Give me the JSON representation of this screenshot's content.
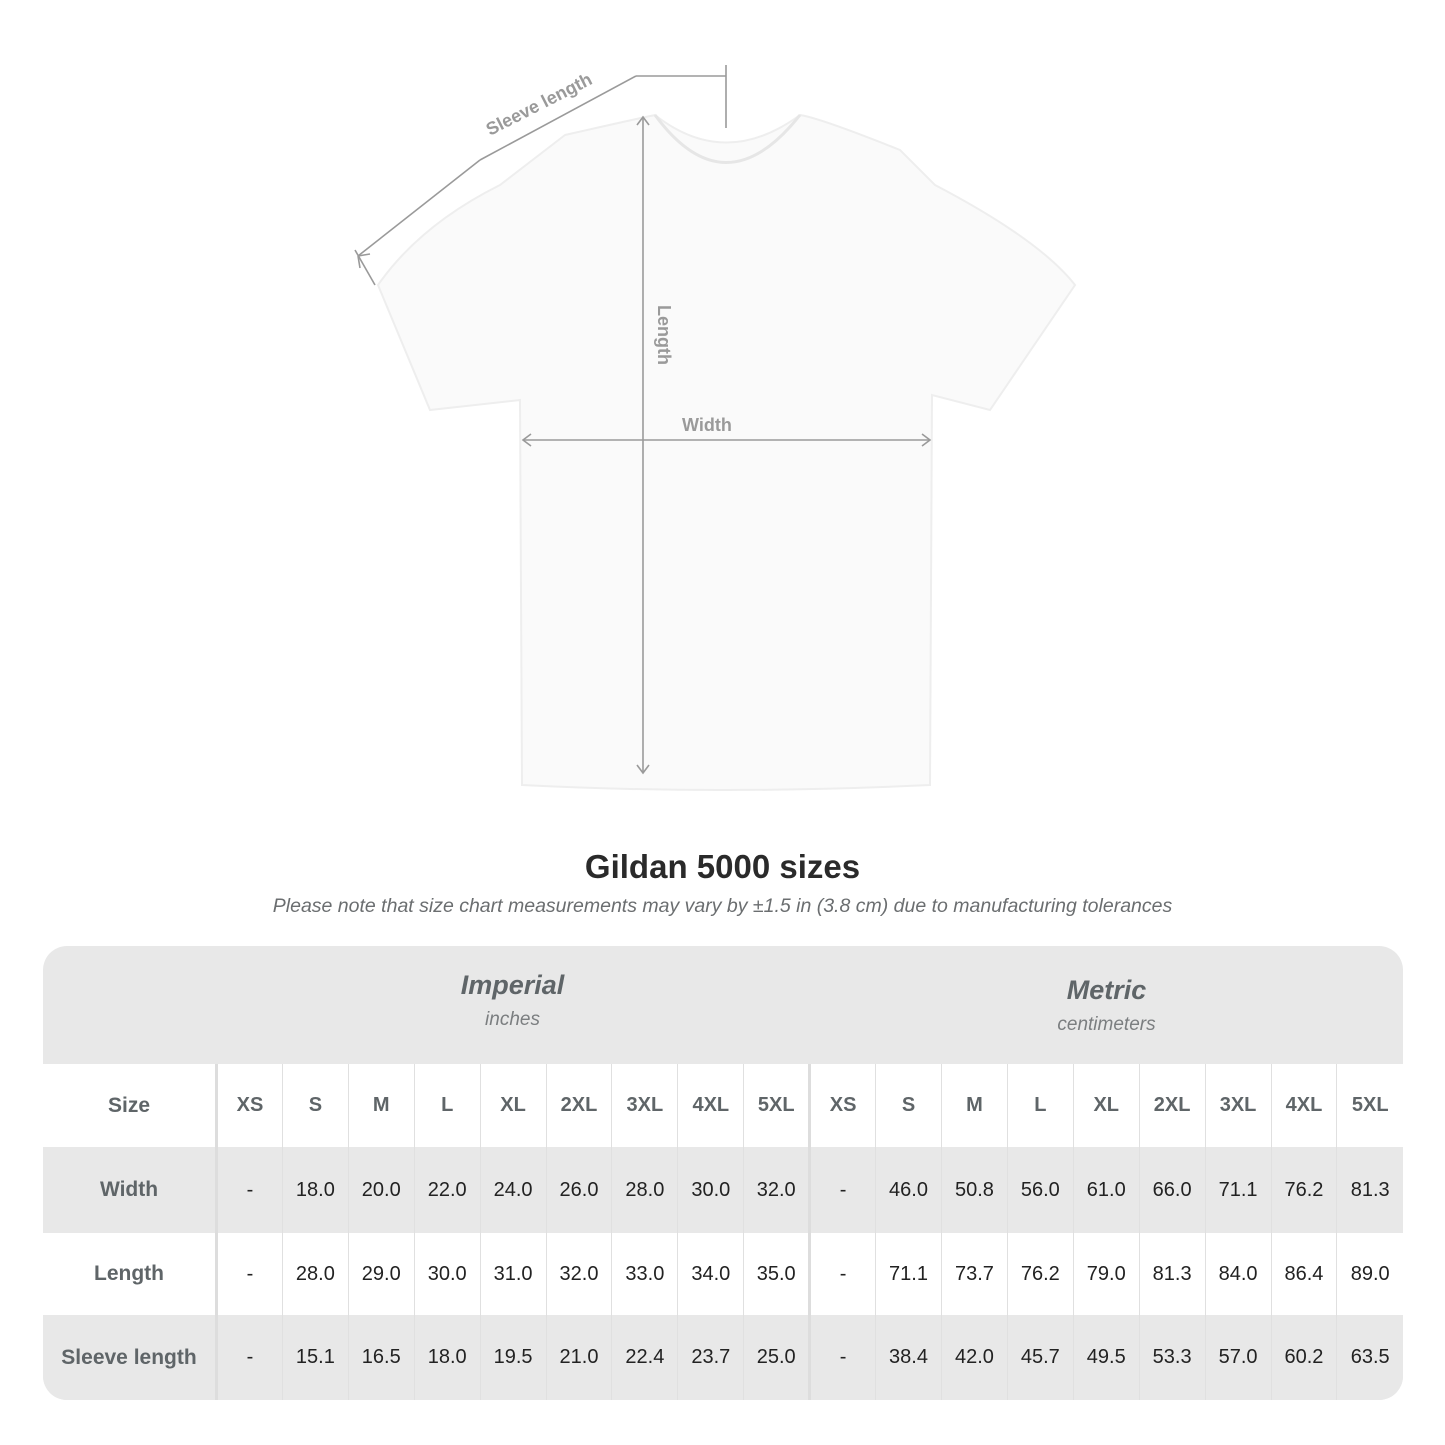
{
  "diagram": {
    "sleeve_label": "Sleeve length",
    "length_label": "Length",
    "width_label": "Width",
    "line_color": "#9a9a9a"
  },
  "title": "Gildan 5000 sizes",
  "subtitle": "Please note that size chart measurements may vary by ±1.5 in (3.8 cm) due to manufacturing tolerances",
  "table": {
    "imperial": {
      "name": "Imperial",
      "unit": "inches"
    },
    "metric": {
      "name": "Metric",
      "unit": "centimeters"
    },
    "size_header": "Size",
    "sizes": [
      "XS",
      "S",
      "M",
      "L",
      "XL",
      "2XL",
      "3XL",
      "4XL",
      "5XL"
    ],
    "rows": [
      {
        "label": "Width",
        "imperial": [
          "-",
          "18.0",
          "20.0",
          "22.0",
          "24.0",
          "26.0",
          "28.0",
          "30.0",
          "32.0"
        ],
        "metric": [
          "-",
          "46.0",
          "50.8",
          "56.0",
          "61.0",
          "66.0",
          "71.1",
          "76.2",
          "81.3"
        ]
      },
      {
        "label": "Length",
        "imperial": [
          "-",
          "28.0",
          "29.0",
          "30.0",
          "31.0",
          "32.0",
          "33.0",
          "34.0",
          "35.0"
        ],
        "metric": [
          "-",
          "71.1",
          "73.7",
          "76.2",
          "79.0",
          "81.3",
          "84.0",
          "86.4",
          "89.0"
        ]
      },
      {
        "label": "Sleeve length",
        "imperial": [
          "-",
          "15.1",
          "16.5",
          "18.0",
          "19.5",
          "21.0",
          "22.4",
          "23.7",
          "25.0"
        ],
        "metric": [
          "-",
          "38.4",
          "42.0",
          "45.7",
          "49.5",
          "53.3",
          "57.0",
          "60.2",
          "63.5"
        ]
      }
    ]
  }
}
